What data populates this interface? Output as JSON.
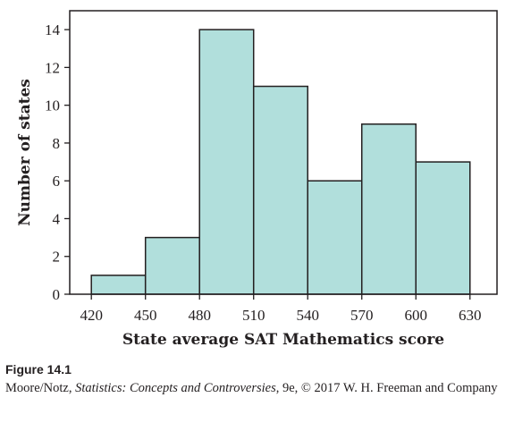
{
  "chart_data": {
    "type": "bar",
    "histogram": true,
    "categories": [
      "420-450",
      "450-480",
      "480-510",
      "510-540",
      "540-570",
      "570-600",
      "600-630"
    ],
    "bin_edges": [
      420,
      450,
      480,
      510,
      540,
      570,
      600,
      630
    ],
    "values": [
      1,
      3,
      14,
      11,
      6,
      9,
      7
    ],
    "x_ticks": [
      420,
      450,
      480,
      510,
      540,
      570,
      600,
      630
    ],
    "y_ticks": [
      0,
      2,
      4,
      6,
      8,
      10,
      12,
      14
    ],
    "xlim": [
      408,
      645
    ],
    "ylim": [
      0,
      15
    ],
    "title": "",
    "xlabel": "State average SAT Mathematics score",
    "ylabel": "Number of states",
    "grid": false,
    "legend": "none",
    "bar_color": "#b1dfdc",
    "edge_color": "#231f20"
  },
  "caption": {
    "figure_label": "Figure 14.1",
    "credit_authors": "Moore/Notz, ",
    "credit_title": "Statistics: Concepts and Controversies",
    "credit_rest": ", 9e, © 2017 W. H. Freeman and Company"
  }
}
